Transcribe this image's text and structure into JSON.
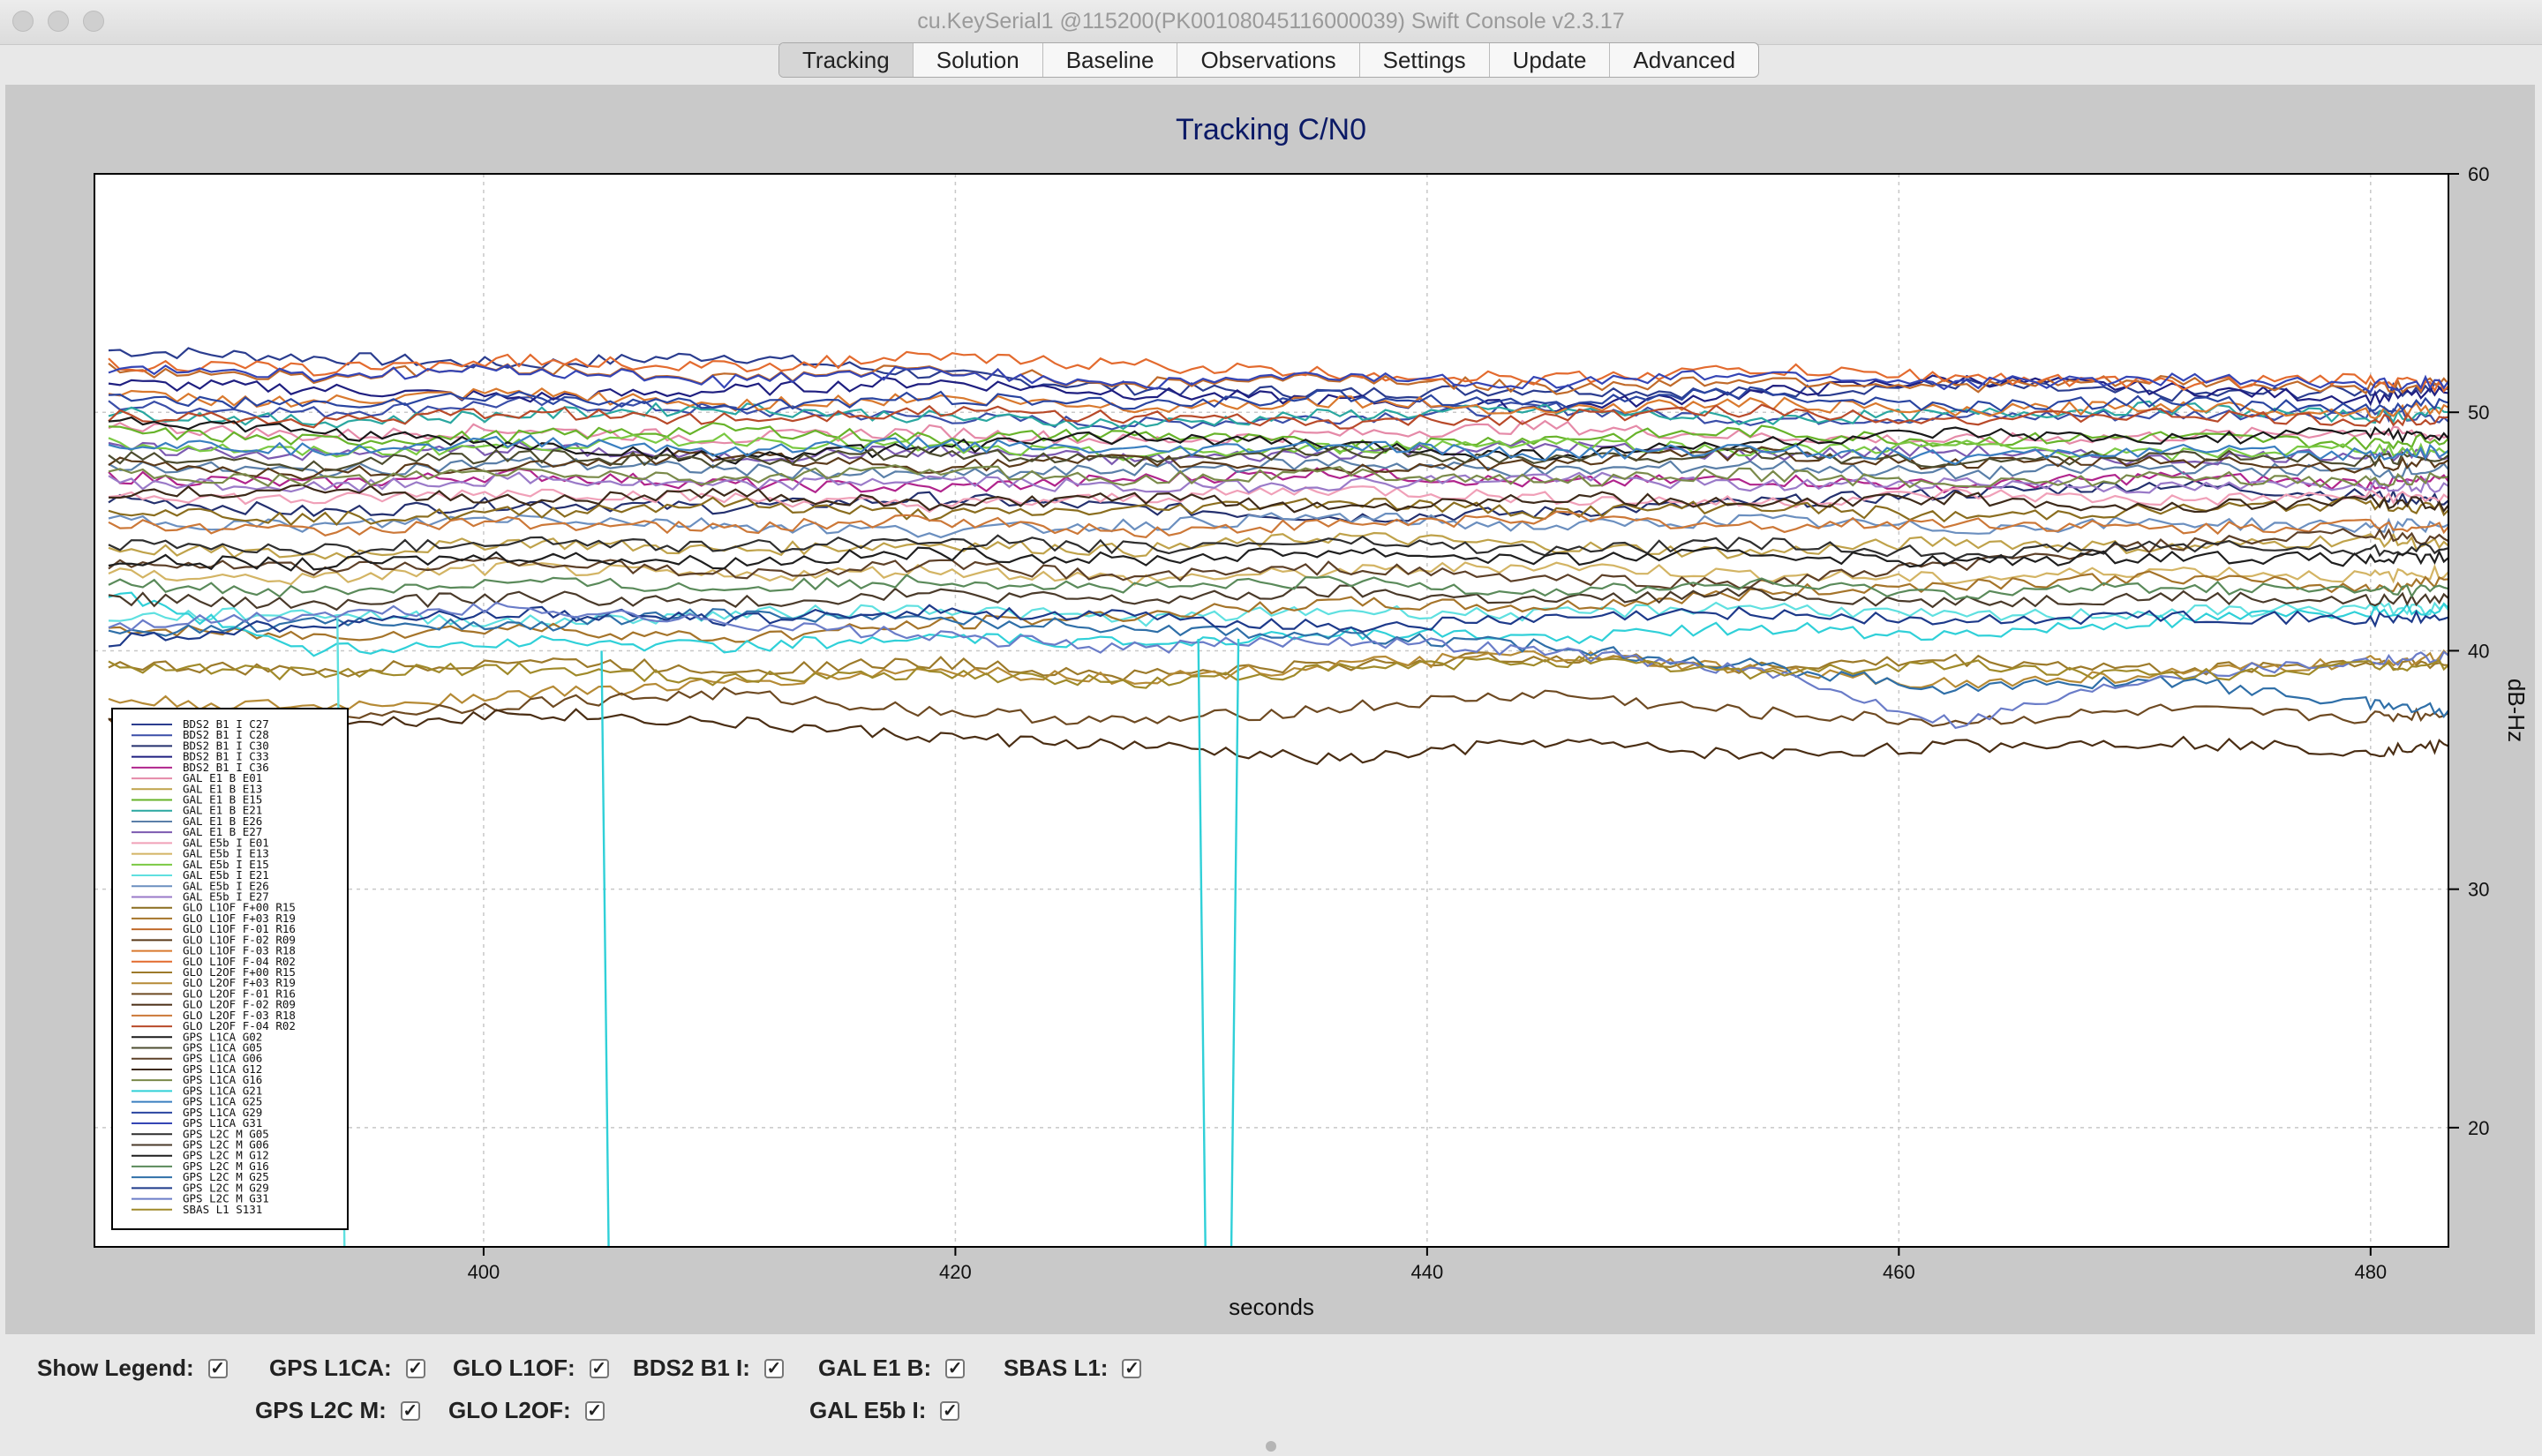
{
  "window": {
    "title": "cu.KeySerial1 @115200(PK00108045116000039) Swift Console v2.3.17"
  },
  "tabs": [
    {
      "label": "Tracking",
      "active": true
    },
    {
      "label": "Solution",
      "active": false
    },
    {
      "label": "Baseline",
      "active": false
    },
    {
      "label": "Observations",
      "active": false
    },
    {
      "label": "Settings",
      "active": false
    },
    {
      "label": "Update",
      "active": false
    },
    {
      "label": "Advanced",
      "active": false
    }
  ],
  "controls": {
    "show_legend": {
      "label": "Show Legend:",
      "checked": true
    },
    "gps_l1ca": {
      "label": "GPS L1CA:",
      "checked": true
    },
    "glo_l1of": {
      "label": "GLO L1OF:",
      "checked": true
    },
    "bds2_b1i": {
      "label": "BDS2 B1 I:",
      "checked": true
    },
    "gal_e1b": {
      "label": "GAL E1 B:",
      "checked": true
    },
    "sbas_l1": {
      "label": "SBAS L1:",
      "checked": true
    },
    "gps_l2cm": {
      "label": "GPS L2C M:",
      "checked": true
    },
    "glo_l2of": {
      "label": "GLO L2OF:",
      "checked": true
    },
    "gal_e5bi": {
      "label": "GAL E5b I:",
      "checked": true
    }
  },
  "chart_data": {
    "type": "line",
    "title": "Tracking C/N0",
    "xlabel": "seconds",
    "ylabel": "dB-Hz",
    "xlim": [
      383.5,
      483.3
    ],
    "ylim": [
      15,
      60
    ],
    "x_ticks": [
      400,
      420,
      440,
      460,
      480
    ],
    "y_ticks": [
      20,
      30,
      40,
      50,
      60
    ],
    "y_axis_side": "right",
    "grid": true,
    "legend_position": "lower-left",
    "x_sample": [
      384.1,
      392.8,
      401.5,
      410.2,
      418.9,
      427.6,
      436.3,
      445.0,
      453.7,
      462.4,
      471.1,
      479.8,
      483.3
    ],
    "series": [
      {
        "name": "BDS2 B1 I C27",
        "color": "#2b3d8f",
        "values": [
          52.6,
          52.3,
          52.0,
          52.4,
          51.6,
          51.0,
          50.8,
          51.0,
          50.8,
          51.2,
          50.7,
          50.9,
          51.0
        ]
      },
      {
        "name": "BDS2 B1 I C28",
        "color": "#3a4ea8",
        "values": [
          50.3,
          50.0,
          50.4,
          50.1,
          49.8,
          49.5,
          49.8,
          50.2,
          49.7,
          49.8,
          49.9,
          50.0,
          49.6
        ]
      },
      {
        "name": "BDS2 B1 I C30",
        "color": "#24306e",
        "values": [
          46.4,
          45.8,
          46.2,
          46.0,
          46.4,
          46.0,
          45.6,
          45.8,
          46.2,
          46.6,
          47.0,
          46.5,
          46.3
        ]
      },
      {
        "name": "BDS2 B1 I C33",
        "color": "#1f1f80",
        "values": [
          51.2,
          51.0,
          50.6,
          50.9,
          51.3,
          50.8,
          50.5,
          50.2,
          50.8,
          51.4,
          51.0,
          50.6,
          50.8
        ]
      },
      {
        "name": "BDS2 B1 I C36",
        "color": "#b0248c",
        "values": [
          47.3,
          47.0,
          47.4,
          47.0,
          46.8,
          47.2,
          47.5,
          47.0,
          47.2,
          46.9,
          47.3,
          47.0,
          47.1
        ]
      },
      {
        "name": "GAL E1 B E01",
        "color": "#e58aa8",
        "values": [
          49.5,
          49.0,
          49.3,
          48.9,
          49.2,
          48.8,
          49.1,
          49.4,
          49.0,
          48.8,
          49.0,
          49.2,
          49.0
        ]
      },
      {
        "name": "GAL E1 B E13",
        "color": "#bfa24a",
        "values": [
          44.3,
          44.0,
          44.6,
          44.2,
          44.5,
          44.2,
          44.8,
          44.4,
          44.1,
          44.6,
          44.3,
          44.7,
          44.4
        ]
      },
      {
        "name": "GAL E1 B E15",
        "color": "#67b32a",
        "values": [
          49.2,
          48.8,
          49.0,
          49.3,
          48.9,
          49.1,
          48.6,
          48.9,
          49.2,
          48.8,
          49.0,
          48.7,
          48.9
        ]
      },
      {
        "name": "GAL E1 B E21",
        "color": "#2aa7a0",
        "values": [
          50.0,
          49.6,
          49.9,
          50.2,
          49.8,
          49.5,
          49.9,
          50.1,
          49.7,
          49.9,
          50.2,
          49.8,
          50.0
        ]
      },
      {
        "name": "GAL E1 B E26",
        "color": "#5a7fa8",
        "values": [
          47.8,
          47.5,
          47.9,
          47.6,
          47.3,
          47.6,
          47.9,
          47.5,
          47.8,
          47.4,
          47.7,
          47.5,
          47.6
        ]
      },
      {
        "name": "GAL E1 B E27",
        "color": "#7c5ab0",
        "values": [
          48.5,
          48.2,
          48.5,
          48.1,
          48.4,
          48.0,
          48.3,
          48.6,
          48.2,
          48.4,
          48.0,
          48.3,
          48.1
        ]
      },
      {
        "name": "GAL E5b I E01",
        "color": "#f0a0b8",
        "values": [
          46.6,
          46.3,
          46.7,
          46.4,
          46.1,
          46.4,
          46.8,
          46.4,
          46.2,
          46.6,
          46.3,
          46.5,
          46.4
        ]
      },
      {
        "name": "GAL E5b I E13",
        "color": "#d3b464",
        "values": [
          43.2,
          43.0,
          43.5,
          43.1,
          43.4,
          43.0,
          43.3,
          43.6,
          43.2,
          43.0,
          43.4,
          43.1,
          43.3
        ]
      },
      {
        "name": "GAL E5b I E15",
        "color": "#7ac943",
        "values": [
          48.7,
          48.3,
          48.6,
          48.9,
          48.5,
          48.2,
          48.5,
          48.8,
          48.4,
          48.6,
          48.2,
          48.5,
          48.3
        ]
      },
      {
        "name": "GAL E5b I E21",
        "color": "#5fe0e0",
        "values": [
          41.4,
          41.6,
          41.2,
          41.5,
          41.8,
          41.3,
          41.7,
          41.5,
          41.9,
          41.4,
          41.6,
          41.8,
          41.7
        ]
      },
      {
        "name": "GAL E5b I E26",
        "color": "#6b8fbf",
        "values": [
          45.5,
          45.2,
          45.6,
          45.3,
          45.0,
          45.3,
          45.6,
          45.2,
          45.5,
          45.1,
          45.4,
          45.2,
          45.3
        ]
      },
      {
        "name": "GAL E5b I E27",
        "color": "#9a7ac8",
        "values": [
          47.1,
          46.8,
          47.2,
          46.9,
          47.2,
          46.8,
          47.0,
          47.3,
          46.9,
          47.1,
          46.8,
          47.0,
          46.9
        ]
      },
      {
        "name": "GLO L1OF F+00 R15",
        "color": "#8a6d1f",
        "values": [
          46.0,
          45.5,
          45.8,
          46.2,
          45.7,
          45.9,
          46.3,
          45.8,
          46.1,
          45.6,
          45.9,
          46.2,
          45.9
        ]
      },
      {
        "name": "GLO L1OF F+03 R19",
        "color": "#a5742a",
        "values": [
          40.9,
          40.6,
          41.0,
          40.5,
          41.1,
          41.5,
          42.0,
          41.8,
          42.4,
          42.8,
          43.1,
          42.6,
          43.0
        ]
      },
      {
        "name": "GLO L1OF F-01 R16",
        "color": "#c06a2a",
        "values": [
          51.8,
          51.5,
          51.9,
          51.4,
          51.8,
          51.2,
          51.5,
          51.0,
          51.4,
          51.1,
          51.3,
          51.0,
          51.2
        ]
      },
      {
        "name": "GLO L1OF F-02 R09",
        "color": "#5a3a1a",
        "values": [
          47.9,
          47.4,
          47.8,
          48.2,
          47.7,
          48.0,
          47.6,
          47.9,
          48.3,
          47.8,
          48.0,
          47.7,
          48.0
        ]
      },
      {
        "name": "GLO L1OF F-03 R18",
        "color": "#d9792e",
        "values": [
          50.7,
          50.4,
          50.8,
          50.3,
          50.6,
          50.2,
          50.5,
          50.1,
          50.4,
          50.0,
          50.3,
          50.0,
          50.2
        ]
      },
      {
        "name": "GLO L1OF F-04 R02",
        "color": "#e36b2f",
        "values": [
          52.0,
          51.8,
          52.2,
          51.9,
          52.3,
          52.0,
          51.6,
          51.4,
          51.8,
          51.5,
          51.2,
          51.4,
          51.1
        ]
      },
      {
        "name": "GLO L2OF F+00 R15",
        "color": "#9c7a2a",
        "values": [
          39.4,
          39.1,
          39.6,
          39.2,
          39.5,
          39.0,
          39.4,
          39.8,
          39.3,
          39.6,
          39.2,
          39.5,
          39.4
        ]
      },
      {
        "name": "GLO L2OF F+03 R19",
        "color": "#b58a35",
        "values": [
          37.9,
          37.6,
          38.2,
          38.6,
          39.2,
          38.8,
          39.4,
          39.8,
          39.2,
          38.6,
          39.0,
          39.5,
          39.8
        ]
      },
      {
        "name": "GLO L2OF F-01 R16",
        "color": "#6e4a22",
        "values": [
          36.9,
          37.2,
          37.8,
          38.2,
          37.5,
          37.0,
          37.6,
          38.2,
          37.4,
          37.0,
          37.5,
          37.2,
          37.4
        ]
      },
      {
        "name": "GLO L2OF F-02 R09",
        "color": "#4a2e14",
        "values": [
          37.2,
          36.8,
          37.4,
          37.0,
          36.4,
          36.0,
          35.4,
          36.2,
          35.6,
          36.0,
          36.2,
          35.8,
          36.0
        ]
      },
      {
        "name": "GLO L2OF F-03 R18",
        "color": "#cc7838",
        "values": [
          45.3,
          45.0,
          45.4,
          45.1,
          45.5,
          45.0,
          45.3,
          45.6,
          45.2,
          45.4,
          45.1,
          45.3,
          45.2
        ]
      },
      {
        "name": "GLO L2OF F-04 R02",
        "color": "#b84a2a",
        "values": [
          49.9,
          49.6,
          50.0,
          49.7,
          50.1,
          49.8,
          49.5,
          49.8,
          50.1,
          49.7,
          49.9,
          49.6,
          49.8
        ]
      },
      {
        "name": "GPS L1CA G02",
        "color": "#1a1a1a",
        "values": [
          49.7,
          49.2,
          48.6,
          48.1,
          48.5,
          49.0,
          48.6,
          48.2,
          48.7,
          49.1,
          48.8,
          49.2,
          48.9
        ]
      },
      {
        "name": "GPS L1CA G05",
        "color": "#4d4d30",
        "values": [
          48.1,
          47.8,
          48.2,
          47.9,
          48.3,
          47.9,
          48.4,
          48.0,
          48.3,
          47.9,
          48.2,
          48.0,
          48.2
        ]
      },
      {
        "name": "GPS L1CA G06",
        "color": "#5d4028",
        "values": [
          43.7,
          43.4,
          43.8,
          43.2,
          43.6,
          43.1,
          43.5,
          43.0,
          42.8,
          43.6,
          44.4,
          44.9,
          44.6
        ]
      },
      {
        "name": "GPS L1CA G12",
        "color": "#3d2a1a",
        "values": [
          46.5,
          46.8,
          46.3,
          46.6,
          46.1,
          46.4,
          46.0,
          46.5,
          46.1,
          46.4,
          46.0,
          46.3,
          46.1
        ]
      },
      {
        "name": "GPS L1CA G16",
        "color": "#7a8a4a",
        "values": [
          47.4,
          47.1,
          47.5,
          47.2,
          47.6,
          47.2,
          47.5,
          47.1,
          47.4,
          47.0,
          47.3,
          47.1,
          47.3
        ]
      },
      {
        "name": "GPS L1CA G21",
        "color": "#30d0d8",
        "values": [
          42.5,
          40.0,
          40.4,
          40.2,
          40.5,
          40.3,
          40.8,
          40.5,
          41.0,
          40.6,
          41.2,
          41.6,
          41.8
        ]
      },
      {
        "name": "GPS L1CA G25",
        "color": "#3a7fc0",
        "values": [
          48.7,
          48.4,
          48.8,
          48.4,
          48.7,
          48.3,
          48.6,
          48.2,
          48.5,
          48.1,
          48.4,
          48.2,
          48.4
        ]
      },
      {
        "name": "GPS L1CA G29",
        "color": "#2a45a0",
        "values": [
          50.6,
          50.3,
          50.7,
          50.2,
          50.6,
          50.3,
          50.7,
          50.4,
          50.8,
          50.2,
          50.5,
          50.1,
          50.4
        ]
      },
      {
        "name": "GPS L1CA G31",
        "color": "#3545b5",
        "values": [
          51.9,
          51.5,
          51.8,
          51.3,
          51.7,
          51.2,
          51.5,
          51.2,
          51.6,
          51.2,
          51.4,
          51.1,
          51.3
        ]
      },
      {
        "name": "GPS L2C M G05",
        "color": "#2f2f2f",
        "values": [
          44.5,
          44.2,
          44.6,
          44.3,
          44.7,
          44.3,
          44.6,
          44.2,
          44.5,
          44.1,
          44.4,
          44.2,
          44.3
        ]
      },
      {
        "name": "GPS L2C M G06",
        "color": "#4a3a2a",
        "values": [
          42.2,
          41.9,
          42.3,
          42.0,
          42.4,
          42.1,
          42.5,
          42.1,
          42.4,
          42.0,
          42.3,
          42.1,
          42.2
        ]
      },
      {
        "name": "GPS L2C M G12",
        "color": "#1f1f1f",
        "values": [
          43.8,
          43.6,
          44.0,
          43.7,
          44.1,
          43.8,
          44.2,
          43.8,
          44.1,
          43.7,
          44.0,
          43.8,
          43.9
        ]
      },
      {
        "name": "GPS L2C M G16",
        "color": "#5a8a5a",
        "values": [
          42.8,
          42.5,
          42.9,
          42.6,
          43.0,
          42.6,
          42.9,
          42.5,
          42.8,
          42.4,
          42.7,
          42.5,
          42.6
        ]
      },
      {
        "name": "GPS L2C M G25",
        "color": "#2f6fa8",
        "values": [
          40.7,
          41.2,
          41.0,
          41.6,
          41.3,
          41.0,
          40.6,
          40.2,
          39.4,
          38.4,
          38.8,
          37.8,
          37.5
        ]
      },
      {
        "name": "GPS L2C M G29",
        "color": "#1e3a8a",
        "values": [
          40.4,
          41.2,
          41.6,
          41.3,
          41.7,
          41.4,
          41.0,
          41.3,
          41.6,
          41.2,
          41.5,
          41.3,
          41.4
        ]
      },
      {
        "name": "GPS L2C M G31",
        "color": "#6a7cc8",
        "values": [
          41.0,
          41.5,
          41.8,
          41.2,
          40.6,
          40.1,
          40.5,
          40.0,
          39.2,
          37.0,
          39.0,
          39.6,
          39.8
        ]
      },
      {
        "name": "SBAS L1 S131",
        "color": "#a08a2a",
        "values": [
          39.4,
          39.0,
          39.3,
          38.8,
          39.1,
          38.6,
          39.2,
          39.6,
          39.1,
          39.4,
          38.9,
          39.3,
          39.4
        ]
      }
    ],
    "dropouts": [
      {
        "series": "GPS L1CA G21",
        "drops": [
          {
            "x_start": 405.0,
            "x_end": 405.3,
            "from": 40.0,
            "to": 15
          },
          {
            "x_start": 430.3,
            "x_end": 430.6,
            "from": 40.5,
            "to": 15
          },
          {
            "x_start": 431.7,
            "x_end": 432.0,
            "from": 15,
            "to": 40.5
          }
        ]
      },
      {
        "series": "GAL E5b I E21",
        "drops": [
          {
            "x_start": 393.8,
            "x_end": 394.1,
            "from": 41.4,
            "to": 15
          }
        ]
      }
    ]
  }
}
